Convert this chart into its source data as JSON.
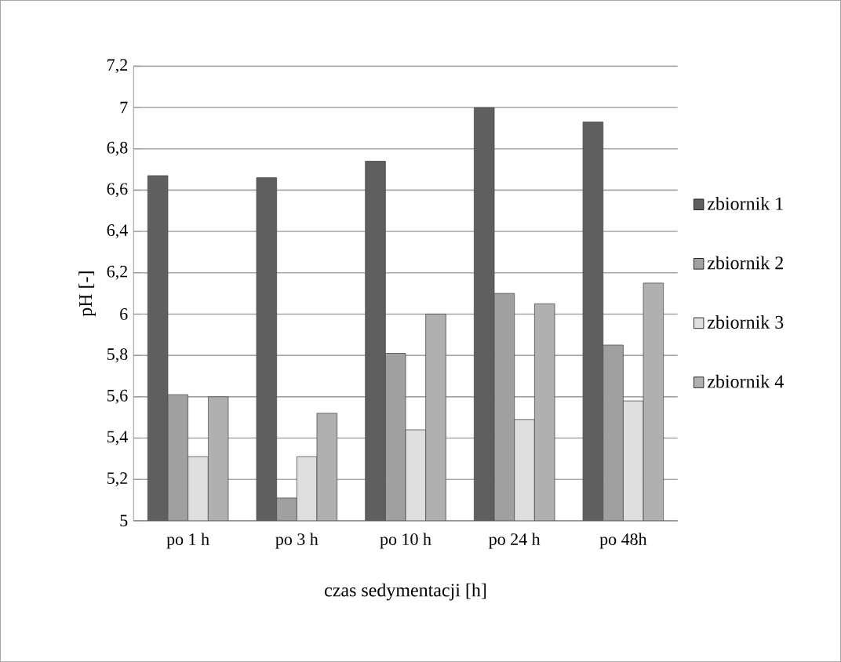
{
  "chart_data": {
    "type": "bar",
    "xlabel": "czas sedymentacji [h]",
    "ylabel": "pH [-]",
    "categories": [
      "po 1 h",
      "po 3 h",
      "po 10 h",
      "po 24 h",
      "po 48h"
    ],
    "series": [
      {
        "name": "zbiornik 1",
        "color": "#5f5f5f",
        "values": [
          6.67,
          6.66,
          6.74,
          7.0,
          6.93
        ]
      },
      {
        "name": "zbiornik 2",
        "color": "#a0a0a0",
        "values": [
          5.61,
          5.11,
          5.81,
          6.1,
          5.85
        ]
      },
      {
        "name": "zbiornik 3",
        "color": "#dedede",
        "values": [
          5.31,
          5.31,
          5.44,
          5.49,
          5.58
        ]
      },
      {
        "name": "zbiornik 4",
        "color": "#b0b0b0",
        "values": [
          5.6,
          5.52,
          6.0,
          6.05,
          6.15
        ]
      }
    ],
    "ylim": [
      5,
      7.2
    ],
    "yticks": [
      {
        "value": 5,
        "label": "5"
      },
      {
        "value": 5.2,
        "label": "5,2"
      },
      {
        "value": 5.4,
        "label": "5,4"
      },
      {
        "value": 5.6,
        "label": "5,6"
      },
      {
        "value": 5.8,
        "label": "5,8"
      },
      {
        "value": 6,
        "label": "6"
      },
      {
        "value": 6.2,
        "label": "6,2"
      },
      {
        "value": 6.4,
        "label": "6,4"
      },
      {
        "value": 6.6,
        "label": "6,6"
      },
      {
        "value": 6.8,
        "label": "6,8"
      },
      {
        "value": 7,
        "label": "7"
      },
      {
        "value": 7.2,
        "label": "7,2"
      }
    ],
    "grid": "y",
    "legend": "right"
  }
}
